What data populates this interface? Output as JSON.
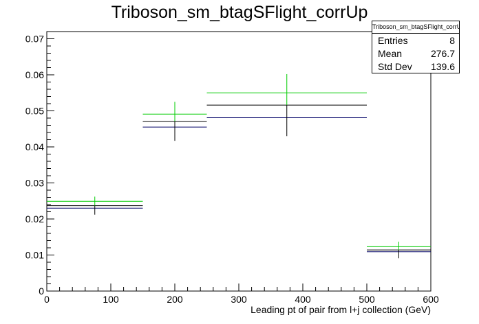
{
  "chart_data": {
    "type": "histogram",
    "title": "Triboson_sm_btagSFlight_corrUp",
    "xlabel": "Leading pt of pair from l+j collection (GeV)",
    "ylabel": "",
    "xlim": [
      0,
      600
    ],
    "ylim": [
      0,
      0.072
    ],
    "x_ticks": [
      "0",
      "100",
      "200",
      "300",
      "400",
      "500",
      "600"
    ],
    "y_ticks": [
      "0",
      "0.01",
      "0.02",
      "0.03",
      "0.04",
      "0.05",
      "0.06",
      "0.07"
    ],
    "bins": [
      [
        0,
        150
      ],
      [
        150,
        250
      ],
      [
        250,
        500
      ],
      [
        500,
        600
      ]
    ],
    "series": [
      {
        "color": "#000000",
        "values": [
          0.0237,
          0.0471,
          0.0516,
          0.0114
        ],
        "errors": [
          0.0025,
          0.0054,
          0.0086,
          0.0023
        ]
      },
      {
        "color": "#00cc00",
        "values": [
          0.0249,
          0.0491,
          0.055,
          0.0123
        ]
      },
      {
        "color": "#000066",
        "values": [
          0.023,
          0.0455,
          0.0481,
          0.0109
        ]
      }
    ],
    "error_bar_color": "#00cc00",
    "grid": false
  },
  "stats": {
    "name": "Triboson_sm_btagSFlight_corrUp",
    "entries_label": "Entries",
    "entries_value": "8",
    "mean_label": "Mean",
    "mean_value": "276.7",
    "stddev_label": "Std Dev",
    "stddev_value": "139.6"
  }
}
